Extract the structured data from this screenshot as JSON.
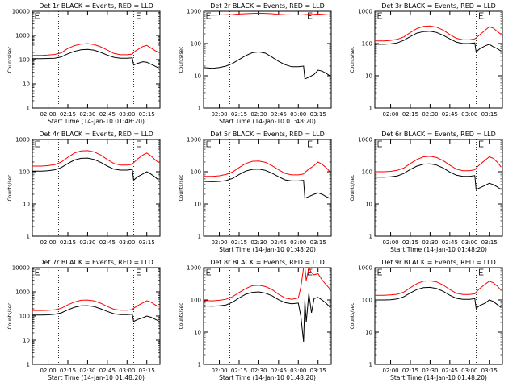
{
  "chart_data": [
    {
      "title": "Det 1r BLACK = Events, RED = LLD",
      "ylabel": "Counts/sec",
      "xlabel": "Start Time (14-Jan-10 01:48:20)",
      "yscale": "log",
      "ylim": [
        1,
        10000
      ],
      "yticks": [
        "1",
        "10",
        "100",
        "1000",
        "10000"
      ],
      "xticks": [
        "02:00",
        "02:15",
        "02:30",
        "02:45",
        "03:00",
        "03:15"
      ],
      "x": [
        "01:48",
        "01:55",
        "02:00",
        "02:05",
        "02:10",
        "02:15",
        "02:20",
        "02:25",
        "02:30",
        "02:35",
        "02:40",
        "02:45",
        "02:50",
        "02:55",
        "03:00",
        "03:04",
        "03:05",
        "03:08",
        "03:12",
        "03:15",
        "03:18",
        "03:21",
        "03:24"
      ],
      "series": [
        {
          "color": "#000000",
          "values": [
            110,
            110,
            112,
            115,
            130,
            175,
            220,
            255,
            265,
            245,
            200,
            155,
            125,
            115,
            115,
            118,
            60,
            70,
            82,
            78,
            65,
            55,
            45
          ]
        },
        {
          "color": "#ff0000",
          "values": [
            150,
            150,
            155,
            165,
            190,
            290,
            380,
            440,
            460,
            420,
            340,
            250,
            180,
            160,
            160,
            170,
            200,
            260,
            350,
            390,
            310,
            240,
            200
          ]
        }
      ]
    },
    {
      "title": "Det 2r BLACK = Events, RED = LLD",
      "ylabel": "Counts/sec",
      "xlabel": "Start Time (14-Jan-10 01:48:20)",
      "yscale": "log",
      "ylim": [
        1,
        1000
      ],
      "yticks": [
        "1",
        "10",
        "100",
        "1000"
      ],
      "xticks": [
        "02:00",
        "02:15",
        "02:30",
        "02:45",
        "03:00",
        "03:15"
      ],
      "x": [
        "01:48",
        "01:55",
        "02:00",
        "02:05",
        "02:10",
        "02:15",
        "02:20",
        "02:25",
        "02:30",
        "02:35",
        "02:40",
        "02:45",
        "02:50",
        "02:55",
        "03:00",
        "03:04",
        "03:05",
        "03:08",
        "03:12",
        "03:15",
        "03:18",
        "03:21",
        "03:24"
      ],
      "series": [
        {
          "color": "#000000",
          "values": [
            18,
            17,
            18,
            20,
            24,
            32,
            42,
            52,
            55,
            50,
            38,
            28,
            22,
            19,
            19,
            20,
            8,
            9,
            11,
            15,
            14,
            12,
            10
          ]
        },
        {
          "color": "#ff0000",
          "values": [
            760,
            760,
            770,
            780,
            790,
            820,
            840,
            860,
            870,
            860,
            840,
            800,
            780,
            770,
            770,
            780,
            790,
            800,
            810,
            820,
            810,
            790,
            760
          ]
        }
      ]
    },
    {
      "title": "Det 3r BLACK = Events, RED = LLD",
      "ylabel": "Counts/sec",
      "xlabel": "",
      "yscale": "log",
      "ylim": [
        1,
        1000
      ],
      "yticks": [
        "1",
        "10",
        "100",
        "1000"
      ],
      "xticks": [
        "02:00",
        "02:15",
        "02:30",
        "02:45",
        "03:00",
        "03:15"
      ],
      "x": [
        "01:48",
        "01:55",
        "02:00",
        "02:05",
        "02:10",
        "02:15",
        "02:20",
        "02:25",
        "02:30",
        "02:35",
        "02:40",
        "02:45",
        "02:50",
        "02:55",
        "03:00",
        "03:04",
        "03:05",
        "03:08",
        "03:12",
        "03:15",
        "03:18",
        "03:21",
        "03:24"
      ],
      "series": [
        {
          "color": "#000000",
          "values": [
            95,
            95,
            98,
            105,
            125,
            165,
            210,
            235,
            240,
            220,
            180,
            140,
            110,
            100,
            100,
            105,
            55,
            70,
            85,
            95,
            80,
            70,
            58
          ]
        },
        {
          "color": "#ff0000",
          "values": [
            120,
            120,
            125,
            135,
            160,
            220,
            290,
            340,
            350,
            320,
            260,
            190,
            145,
            130,
            130,
            140,
            150,
            190,
            260,
            330,
            300,
            240,
            190
          ]
        }
      ]
    },
    {
      "title": "Det 4r BLACK = Events, RED = LLD",
      "ylabel": "Counts/sec",
      "xlabel": "",
      "yscale": "log",
      "ylim": [
        1,
        1000
      ],
      "yticks": [
        "1",
        "10",
        "100",
        "1000"
      ],
      "xticks": [
        "02:00",
        "02:15",
        "02:30",
        "02:45",
        "03:00",
        "03:15"
      ],
      "x": [
        "01:48",
        "01:55",
        "02:00",
        "02:05",
        "02:10",
        "02:15",
        "02:20",
        "02:25",
        "02:30",
        "02:35",
        "02:40",
        "02:45",
        "02:50",
        "02:55",
        "03:00",
        "03:04",
        "03:05",
        "03:08",
        "03:12",
        "03:15",
        "03:18",
        "03:21",
        "03:24"
      ],
      "series": [
        {
          "color": "#000000",
          "values": [
            105,
            105,
            108,
            115,
            135,
            180,
            230,
            260,
            265,
            240,
            195,
            150,
            120,
            112,
            112,
            118,
            55,
            70,
            85,
            100,
            85,
            70,
            55
          ]
        },
        {
          "color": "#ff0000",
          "values": [
            150,
            150,
            155,
            165,
            200,
            280,
            380,
            440,
            450,
            410,
            330,
            240,
            180,
            160,
            160,
            170,
            190,
            250,
            330,
            380,
            310,
            240,
            190
          ]
        }
      ]
    },
    {
      "title": "Det 5r BLACK = Events, RED = LLD",
      "ylabel": "Counts/sec",
      "xlabel": "Start Time (14-Jan-10 01:48:20)",
      "yscale": "log",
      "ylim": [
        1,
        1000
      ],
      "yticks": [
        "1",
        "10",
        "100",
        "1000"
      ],
      "xticks": [
        "02:00",
        "02:15",
        "02:30",
        "02:45",
        "03:00",
        "03:15"
      ],
      "x": [
        "01:48",
        "01:55",
        "02:00",
        "02:05",
        "02:10",
        "02:15",
        "02:20",
        "02:25",
        "02:30",
        "02:35",
        "02:40",
        "02:45",
        "02:50",
        "02:55",
        "03:00",
        "03:04",
        "03:05",
        "03:08",
        "03:12",
        "03:15",
        "03:18",
        "03:21",
        "03:24"
      ],
      "series": [
        {
          "color": "#000000",
          "values": [
            50,
            49,
            50,
            53,
            62,
            82,
            105,
            118,
            120,
            110,
            90,
            70,
            56,
            52,
            52,
            54,
            15,
            17,
            20,
            22,
            20,
            17,
            15
          ]
        },
        {
          "color": "#ff0000",
          "values": [
            72,
            72,
            75,
            82,
            98,
            135,
            180,
            210,
            215,
            195,
            155,
            115,
            88,
            80,
            80,
            85,
            95,
            120,
            155,
            200,
            170,
            135,
            100
          ]
        }
      ]
    },
    {
      "title": "Det 6r BLACK = Events, RED = LLD",
      "ylabel": "Counts/sec",
      "xlabel": "Start Time (14-Jan-10 01:48:20)",
      "yscale": "log",
      "ylim": [
        1,
        1000
      ],
      "yticks": [
        "1",
        "10",
        "100",
        "1000"
      ],
      "xticks": [
        "02:00",
        "02:15",
        "02:30",
        "02:45",
        "03:00",
        "03:15"
      ],
      "x": [
        "01:48",
        "01:55",
        "02:00",
        "02:05",
        "02:10",
        "02:15",
        "02:20",
        "02:25",
        "02:30",
        "02:35",
        "02:40",
        "02:45",
        "02:50",
        "02:55",
        "03:00",
        "03:04",
        "03:05",
        "03:08",
        "03:12",
        "03:15",
        "03:18",
        "03:21",
        "03:24"
      ],
      "series": [
        {
          "color": "#000000",
          "values": [
            68,
            68,
            70,
            74,
            88,
            118,
            150,
            172,
            175,
            160,
            130,
            98,
            78,
            72,
            72,
            76,
            28,
            32,
            38,
            44,
            40,
            34,
            28
          ]
        },
        {
          "color": "#ff0000",
          "values": [
            100,
            100,
            103,
            110,
            130,
            180,
            240,
            290,
            300,
            275,
            220,
            160,
            120,
            108,
            108,
            115,
            130,
            170,
            230,
            290,
            260,
            200,
            140
          ]
        }
      ]
    },
    {
      "title": "Det 7r BLACK = Events, RED = LLD",
      "ylabel": "Counts/sec",
      "xlabel": "Start Time (14-Jan-10 01:48:20)",
      "yscale": "log",
      "ylim": [
        1,
        10000
      ],
      "yticks": [
        "1",
        "10",
        "100",
        "1000",
        "10000"
      ],
      "xticks": [
        "02:00",
        "02:15",
        "02:30",
        "02:45",
        "03:00",
        "03:15"
      ],
      "x": [
        "01:48",
        "01:55",
        "02:00",
        "02:05",
        "02:10",
        "02:15",
        "02:20",
        "02:25",
        "02:30",
        "02:35",
        "02:40",
        "02:45",
        "02:50",
        "02:55",
        "03:00",
        "03:04",
        "03:05",
        "03:08",
        "03:12",
        "03:15",
        "03:18",
        "03:21",
        "03:24"
      ],
      "series": [
        {
          "color": "#000000",
          "values": [
            110,
            110,
            112,
            118,
            135,
            180,
            230,
            265,
            270,
            245,
            200,
            155,
            125,
            115,
            115,
            118,
            60,
            72,
            85,
            100,
            90,
            75,
            62
          ]
        },
        {
          "color": "#ff0000",
          "values": [
            170,
            170,
            172,
            180,
            210,
            290,
            380,
            450,
            460,
            420,
            340,
            250,
            190,
            175,
            175,
            185,
            210,
            270,
            350,
            430,
            380,
            300,
            240
          ]
        }
      ]
    },
    {
      "title": "Det 8r BLACK = Events, RED = LLD",
      "ylabel": "Counts/sec",
      "xlabel": "Start Time (14-Jan-10 01:48:20)",
      "yscale": "log",
      "ylim": [
        1,
        1000
      ],
      "yticks": [
        "1",
        "10",
        "100",
        "1000"
      ],
      "xticks": [
        "02:00",
        "02:15",
        "02:30",
        "02:45",
        "03:00",
        "03:15"
      ],
      "x": [
        "01:48",
        "01:55",
        "02:00",
        "02:05",
        "02:10",
        "02:15",
        "02:20",
        "02:25",
        "02:30",
        "02:35",
        "02:40",
        "02:45",
        "02:50",
        "02:55",
        "03:00",
        "03:02",
        "03:04",
        "03:05",
        "03:06",
        "03:08",
        "03:10",
        "03:12",
        "03:15",
        "03:18",
        "03:21",
        "03:24"
      ],
      "series": [
        {
          "color": "#000000",
          "values": [
            65,
            64,
            66,
            70,
            85,
            115,
            150,
            172,
            178,
            162,
            135,
            102,
            82,
            76,
            80,
            30,
            5,
            100,
            20,
            160,
            40,
            110,
            120,
            100,
            80,
            60
          ]
        },
        {
          "color": "#ff0000",
          "values": [
            95,
            94,
            98,
            105,
            125,
            170,
            225,
            275,
            285,
            260,
            210,
            150,
            115,
            105,
            115,
            260,
            1000,
            1000,
            400,
            1000,
            700,
            600,
            650,
            420,
            300,
            220
          ]
        }
      ]
    },
    {
      "title": "Det 9r BLACK = Events, RED = LLD",
      "ylabel": "Counts/sec",
      "xlabel": "Start Time (14-Jan-10 01:48:20)",
      "yscale": "log",
      "ylim": [
        1,
        1000
      ],
      "yticks": [
        "1",
        "10",
        "100",
        "1000"
      ],
      "xticks": [
        "02:00",
        "02:15",
        "02:30",
        "02:45",
        "03:00",
        "03:15"
      ],
      "x": [
        "01:48",
        "01:55",
        "02:00",
        "02:05",
        "02:10",
        "02:15",
        "02:20",
        "02:25",
        "02:30",
        "02:35",
        "02:40",
        "02:45",
        "02:50",
        "02:55",
        "03:00",
        "03:04",
        "03:05",
        "03:08",
        "03:12",
        "03:15",
        "03:18",
        "03:21",
        "03:24"
      ],
      "series": [
        {
          "color": "#000000",
          "values": [
            100,
            100,
            102,
            108,
            125,
            165,
            210,
            240,
            245,
            225,
            185,
            140,
            112,
            105,
            105,
            110,
            55,
            68,
            80,
            100,
            90,
            72,
            58
          ]
        },
        {
          "color": "#ff0000",
          "values": [
            140,
            140,
            143,
            150,
            175,
            240,
            320,
            380,
            390,
            360,
            290,
            210,
            160,
            148,
            148,
            155,
            175,
            230,
            310,
            380,
            340,
            270,
            200
          ]
        }
      ]
    }
  ]
}
